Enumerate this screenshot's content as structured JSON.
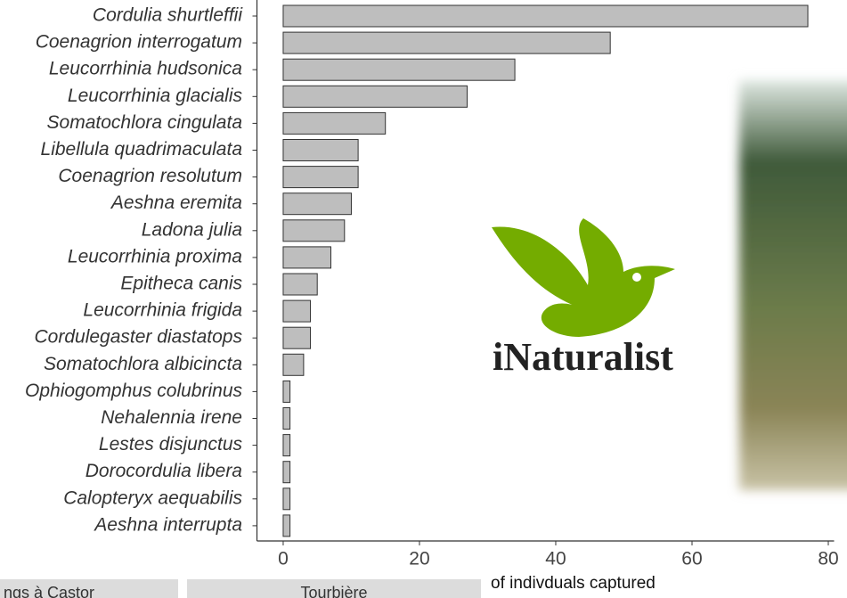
{
  "chart_data": {
    "type": "bar",
    "orientation": "horizontal",
    "categories": [
      "Cordulia shurtleffii",
      "Coenagrion interrogatum",
      "Leucorrhinia hudsonica",
      "Leucorrhinia glacialis",
      "Somatochlora cingulata",
      "Libellula quadrimaculata",
      "Coenagrion resolutum",
      "Aeshna eremita",
      "Ladona julia",
      "Leucorrhinia proxima",
      "Epitheca canis",
      "Leucorrhinia frigida",
      "Cordulegaster diastatops",
      "Somatochlora albicincta",
      "Ophiogomphus colubrinus",
      "Nehalennia irene",
      "Lestes disjunctus",
      "Dorocordulia libera",
      "Calopteryx aequabilis",
      "Aeshna interrupta"
    ],
    "values": [
      77,
      48,
      34,
      27,
      15,
      11,
      11,
      10,
      9,
      7,
      5,
      4,
      4,
      3,
      1,
      1,
      1,
      1,
      1,
      1
    ],
    "color": "#bebebe",
    "xlim": [
      -3.85,
      80.85
    ],
    "xticks": [
      0,
      20,
      40,
      60,
      80
    ],
    "x_label": "of indivduals captured"
  },
  "logo": "iNaturalist",
  "tabs": [
    "ngs à Castor",
    "Tourbière"
  ]
}
